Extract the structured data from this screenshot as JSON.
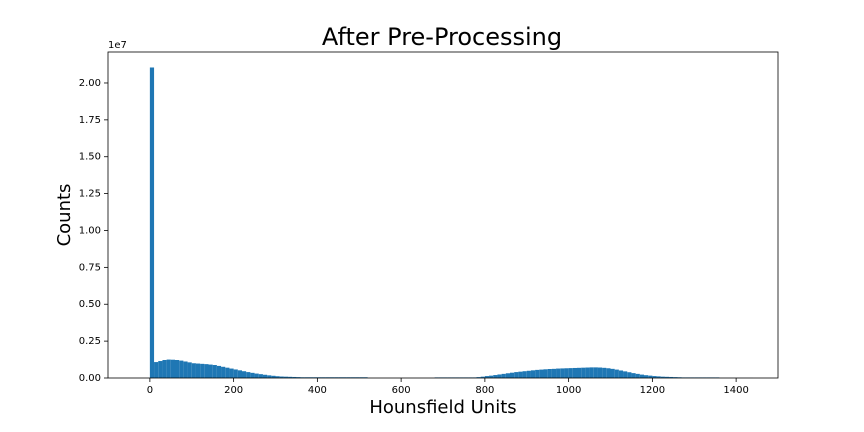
{
  "chart_data": {
    "type": "histogram",
    "title": "After Pre-Processing",
    "xlabel": "Hounsfield Units",
    "ylabel": "Counts",
    "y_offset_label": "1e7",
    "color": "#1f77b4",
    "xlim": [
      -100,
      1500
    ],
    "ylim": [
      0,
      22100000
    ],
    "xticks": [
      0,
      200,
      400,
      600,
      800,
      1000,
      1200,
      1400
    ],
    "yticks": [
      {
        "value": 0,
        "label": "0.00"
      },
      {
        "value": 2500000,
        "label": "0.25"
      },
      {
        "value": 5000000,
        "label": "0.50"
      },
      {
        "value": 7500000,
        "label": "0.75"
      },
      {
        "value": 10000000,
        "label": "1.00"
      },
      {
        "value": 12500000,
        "label": "1.25"
      },
      {
        "value": 15000000,
        "label": "1.50"
      },
      {
        "value": 17500000,
        "label": "1.75"
      },
      {
        "value": 20000000,
        "label": "2.00"
      }
    ],
    "bins": [
      0,
      10,
      20,
      30,
      40,
      50,
      60,
      70,
      80,
      90,
      100,
      110,
      120,
      130,
      140,
      150,
      160,
      170,
      180,
      190,
      200,
      210,
      220,
      230,
      240,
      250,
      260,
      270,
      280,
      290,
      300,
      310,
      320,
      330,
      340,
      350,
      360,
      370,
      380,
      390,
      400,
      410,
      420,
      430,
      440,
      450,
      460,
      470,
      480,
      490,
      500,
      510,
      520,
      530,
      540,
      550,
      560,
      570,
      580,
      590,
      600,
      610,
      620,
      630,
      640,
      650,
      660,
      670,
      680,
      690,
      700,
      710,
      720,
      730,
      740,
      750,
      760,
      770,
      780,
      790,
      800,
      810,
      820,
      830,
      840,
      850,
      860,
      870,
      880,
      890,
      900,
      910,
      920,
      930,
      940,
      950,
      960,
      970,
      980,
      990,
      1000,
      1010,
      1020,
      1030,
      1040,
      1050,
      1060,
      1070,
      1080,
      1090,
      1100,
      1110,
      1120,
      1130,
      1140,
      1150,
      1160,
      1170,
      1180,
      1190,
      1200,
      1210,
      1220,
      1230,
      1240,
      1250,
      1260,
      1270,
      1280,
      1290,
      1300,
      1310,
      1320,
      1330,
      1340,
      1350,
      1360,
      1370,
      1380,
      1390,
      1400,
      1410,
      1420,
      1430,
      1440
    ],
    "values": [
      21050000,
      1080000,
      1150000,
      1220000,
      1250000,
      1240000,
      1220000,
      1180000,
      1120000,
      1060000,
      1000000,
      980000,
      960000,
      940000,
      910000,
      880000,
      820000,
      760000,
      700000,
      640000,
      580000,
      520000,
      460000,
      400000,
      350000,
      300000,
      260000,
      220000,
      180000,
      150000,
      120000,
      100000,
      90000,
      80000,
      70000,
      60000,
      50000,
      50000,
      50000,
      50000,
      50000,
      50000,
      50000,
      50000,
      50000,
      50000,
      50000,
      50000,
      50000,
      50000,
      50000,
      50000,
      0,
      0,
      0,
      0,
      0,
      0,
      0,
      0,
      0,
      0,
      0,
      0,
      0,
      0,
      0,
      0,
      40000,
      40000,
      40000,
      40000,
      40000,
      40000,
      40000,
      40000,
      40000,
      40000,
      60000,
      90000,
      130000,
      160000,
      200000,
      240000,
      280000,
      320000,
      360000,
      400000,
      430000,
      460000,
      490000,
      520000,
      550000,
      570000,
      590000,
      610000,
      620000,
      640000,
      650000,
      660000,
      670000,
      680000,
      690000,
      700000,
      710000,
      720000,
      720000,
      710000,
      690000,
      660000,
      620000,
      570000,
      510000,
      450000,
      390000,
      330000,
      280000,
      230000,
      190000,
      160000,
      130000,
      110000,
      90000,
      80000,
      70000,
      60000,
      50000,
      40000,
      40000,
      40000,
      40000,
      40000,
      40000,
      40000,
      40000,
      40000,
      5000,
      5000,
      5000,
      5000,
      5000,
      5000,
      5000,
      5000
    ]
  }
}
